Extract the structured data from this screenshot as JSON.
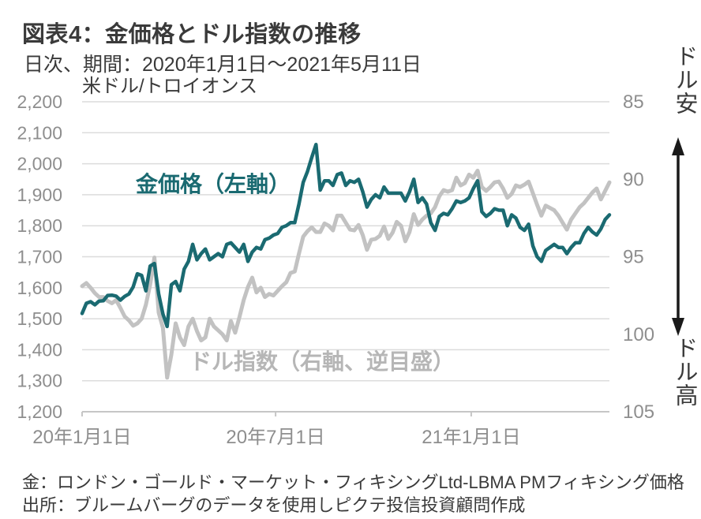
{
  "header": {
    "title": "図表4：金価格とドル指数の推移",
    "subtitle": "日次、期間：2020年1月1日～2021年5月11日"
  },
  "chart_data": {
    "type": "line",
    "title": "図表4：金価格とドル指数の推移",
    "subtitle": "日次、期間：2020年1月1日～2021年5月11日",
    "unit_label": "米ドル/トロイオンス",
    "grid": true,
    "left_axis": {
      "min": 1200,
      "max": 2200,
      "step": 100,
      "tick_labels": [
        "2,200",
        "2,100",
        "2,000",
        "1,900",
        "1,800",
        "1,700",
        "1,600",
        "1,500",
        "1,400",
        "1,300",
        "1,200"
      ]
    },
    "right_axis": {
      "min": 85,
      "max": 105,
      "step": 5,
      "inverted": true,
      "tick_labels": [
        "85",
        "90",
        "95",
        "100",
        "105"
      ]
    },
    "x_axis": {
      "tick_labels": [
        "20年1月1日",
        "20年7月1日",
        "21年1月1日"
      ],
      "tick_days": [
        0,
        182,
        366
      ],
      "total_days": 496
    },
    "annotations": {
      "dollar_weak": "ドル安",
      "dollar_strong": "ドル高"
    },
    "colors": {
      "gold": "#1a6a71",
      "dollar_index": "#c2c2c2",
      "dollar_index_label": "#b6b6b6"
    },
    "series": [
      {
        "label": "金価格（左軸）",
        "axis": "left",
        "color": "#1a6a71",
        "values": [
          1517,
          1550,
          1555,
          1545,
          1557,
          1558,
          1575,
          1576,
          1573,
          1560,
          1572,
          1580,
          1602,
          1645,
          1640,
          1590,
          1670,
          1678,
          1580,
          1515,
          1475,
          1610,
          1620,
          1590,
          1660,
          1685,
          1740,
          1690,
          1710,
          1725,
          1690,
          1700,
          1710,
          1700,
          1740,
          1745,
          1730,
          1715,
          1740,
          1685,
          1715,
          1730,
          1725,
          1755,
          1760,
          1770,
          1775,
          1795,
          1800,
          1810,
          1810,
          1870,
          1940,
          1975,
          2020,
          2062,
          1915,
          1945,
          1945,
          1930,
          1965,
          1970,
          1930,
          1945,
          1940,
          1950,
          1910,
          1860,
          1885,
          1900,
          1890,
          1925,
          1905,
          1905,
          1905,
          1905,
          1880,
          1910,
          1950,
          1875,
          1890,
          1870,
          1810,
          1785,
          1830,
          1840,
          1835,
          1855,
          1880,
          1875,
          1880,
          1890,
          1920,
          1945,
          1845,
          1830,
          1840,
          1855,
          1850,
          1850,
          1800,
          1835,
          1825,
          1795,
          1785,
          1805,
          1735,
          1700,
          1685,
          1720,
          1730,
          1740,
          1730,
          1730,
          1710,
          1730,
          1745,
          1745,
          1775,
          1795,
          1780,
          1770,
          1790,
          1820,
          1835
        ]
      },
      {
        "label": "ドル指数（右軸、逆目盛）",
        "axis": "right",
        "color": "#c2c2c2",
        "values": [
          96.9,
          96.7,
          97.0,
          97.35,
          97.6,
          97.6,
          97.85,
          98.0,
          97.8,
          98.3,
          98.85,
          99.1,
          99.45,
          99.3,
          99.0,
          98.1,
          96.8,
          95.05,
          98.6,
          99.6,
          102.8,
          101.3,
          99.3,
          100.2,
          100.7,
          99.5,
          99.0,
          99.8,
          100.4,
          100.2,
          99.0,
          99.5,
          99.75,
          100.0,
          100.4,
          99.15,
          99.9,
          98.9,
          97.8,
          96.95,
          96.35,
          97.3,
          97.0,
          97.6,
          97.4,
          97.5,
          97.2,
          96.9,
          96.65,
          96.05,
          95.95,
          94.8,
          93.7,
          93.35,
          93.1,
          93.4,
          93.4,
          92.85,
          93.0,
          93.3,
          92.35,
          92.35,
          92.8,
          93.25,
          93.3,
          92.95,
          93.6,
          94.55,
          93.9,
          93.85,
          93.65,
          93.05,
          93.85,
          93.45,
          92.75,
          93.0,
          94.0,
          93.4,
          92.25,
          92.95,
          92.6,
          92.35,
          92.2,
          91.8,
          91.1,
          90.7,
          90.8,
          90.7,
          89.9,
          90.4,
          90.25,
          89.7,
          89.9,
          89.45,
          90.5,
          90.75,
          90.5,
          90.2,
          90.15,
          90.6,
          91.2,
          90.95,
          90.4,
          90.5,
          90.35,
          90.15,
          90.9,
          91.65,
          92.35,
          91.7,
          91.85,
          92.0,
          92.35,
          92.8,
          93.25,
          92.6,
          92.2,
          91.8,
          91.55,
          91.2,
          90.85,
          90.6,
          91.3,
          90.75,
          90.2
        ]
      }
    ]
  },
  "footer": {
    "line1": "金：ロンドン・ゴールド・マーケット・フィキシングLtd-LBMA PMフィキシング価格",
    "line2": "出所：ブルームバーグのデータを使用しピクテ投信投資顧問作成"
  }
}
